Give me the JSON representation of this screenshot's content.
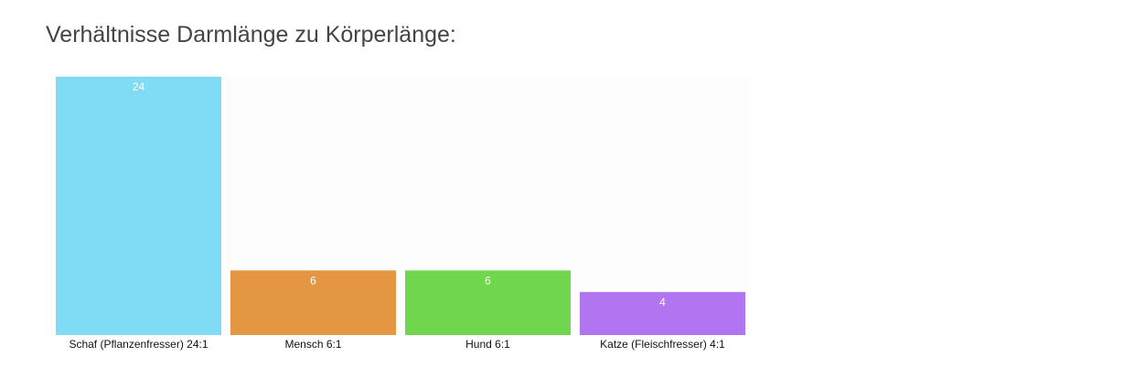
{
  "chart_data": {
    "type": "bar",
    "title": "Verhältnisse Darmlänge zu Körperlänge:",
    "categories": [
      "Schaf (Pflanzenfresser) 24:1",
      "Mensch 6:1",
      "Hund 6:1",
      "Katze (Fleischfresser) 4:1"
    ],
    "values": [
      24,
      6,
      6,
      4
    ],
    "colors": [
      "#80dcf5",
      "#e49642",
      "#70d64e",
      "#b175f2"
    ],
    "ylim": [
      0,
      24
    ]
  }
}
